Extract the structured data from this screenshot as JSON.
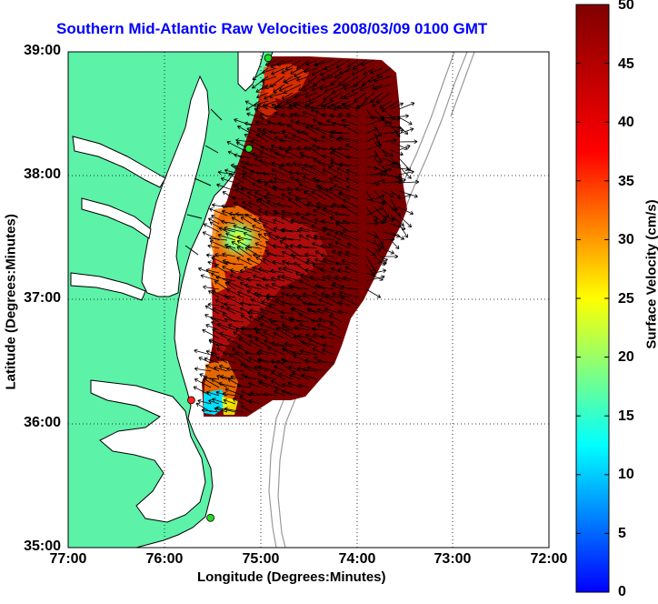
{
  "title": "Southern Mid-Atlantic Raw Velocities 2008/03/09 0100 GMT",
  "x_axis": {
    "label": "Longitude (Degrees:Minutes)",
    "ticks": [
      "77:00",
      "76:00",
      "75:00",
      "74:00",
      "73:00",
      "72:00"
    ]
  },
  "y_axis": {
    "label": "Latitude (Degrees:Minutes)",
    "ticks": [
      "39:00",
      "38:00",
      "37:00",
      "36:00",
      "35:00"
    ]
  },
  "colorbar": {
    "label": "Surface Velocity (cm/s)",
    "ticks": [
      "50",
      "45",
      "40",
      "35",
      "30",
      "25",
      "20",
      "15",
      "10",
      "5",
      "0"
    ],
    "min": 0,
    "max": 50,
    "colormap": "jet"
  },
  "colors": {
    "title": "#0000ff",
    "land": "#5cf2a8",
    "water": "#ffffff",
    "coast": "#000000",
    "bathymetry": "#999999",
    "grid": "#000000",
    "station_green": "#22dd22",
    "station_red": "#ff2020"
  },
  "map_extent": {
    "lon": [
      -77,
      -72
    ],
    "lat": [
      35,
      39
    ]
  },
  "stations": [
    {
      "lon": -74.92,
      "lat": 38.95,
      "status": "green"
    },
    {
      "lon": -75.12,
      "lat": 38.22,
      "status": "green"
    },
    {
      "lon": -75.72,
      "lat": 36.19,
      "status": "red"
    },
    {
      "lon": -75.52,
      "lat": 35.24,
      "status": "green"
    }
  ]
}
